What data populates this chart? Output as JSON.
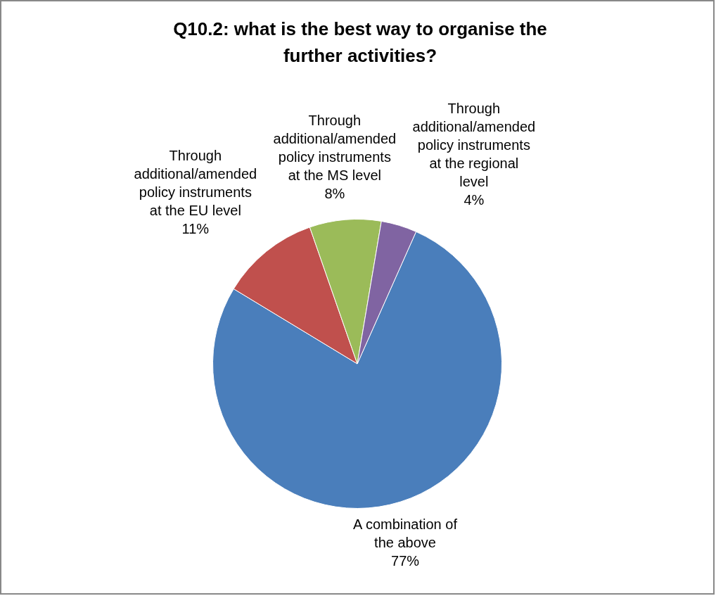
{
  "chart_data": {
    "type": "pie",
    "title": "Q10.2: what is the best way to organise the further activities?",
    "categories": [
      "A combination of the above",
      "Through additional/amended policy instruments at the EU level",
      "Through additional/amended policy instruments at the MS level",
      "Through additional/amended policy instruments at the regional level"
    ],
    "values": [
      77,
      11,
      8,
      4
    ],
    "colors": [
      "#4a7ebb",
      "#c0504d",
      "#9bbb59",
      "#8064a2"
    ],
    "value_labels": [
      "77%",
      "11%",
      "8%",
      "4%"
    ],
    "legend": false
  }
}
